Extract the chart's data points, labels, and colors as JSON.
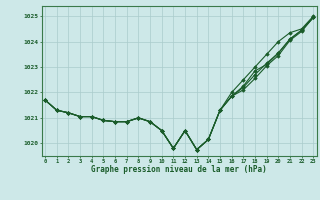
{
  "title": "Graphe pression niveau de la mer (hPa)",
  "bg_color": "#cde8e8",
  "grid_color": "#aacccc",
  "line_color": "#1a5c2a",
  "marker_color": "#1a5c2a",
  "xlim": [
    -0.3,
    23.3
  ],
  "ylim": [
    1019.5,
    1025.4
  ],
  "yticks": [
    1020,
    1021,
    1022,
    1023,
    1024,
    1025
  ],
  "xticks": [
    0,
    1,
    2,
    3,
    4,
    5,
    6,
    7,
    8,
    9,
    10,
    11,
    12,
    13,
    14,
    15,
    16,
    17,
    18,
    19,
    20,
    21,
    22,
    23
  ],
  "series": [
    [
      1021.7,
      1021.3,
      1021.2,
      1021.05,
      1021.05,
      1020.9,
      1020.85,
      1020.85,
      1021.0,
      1020.85,
      1020.5,
      1019.8,
      1020.5,
      1019.75,
      1020.15,
      1021.3,
      1022.0,
      1022.5,
      1023.0,
      1023.5,
      1024.0,
      1024.35,
      1024.5,
      1025.0
    ],
    [
      1021.7,
      1021.3,
      1021.2,
      1021.05,
      1021.05,
      1020.9,
      1020.85,
      1020.85,
      1021.0,
      1020.85,
      1020.5,
      1019.8,
      1020.5,
      1019.75,
      1020.15,
      1021.3,
      1021.85,
      1022.1,
      1022.55,
      1023.05,
      1023.45,
      1024.05,
      1024.4,
      1024.95
    ],
    [
      1021.7,
      1021.3,
      1021.2,
      1021.05,
      1021.05,
      1020.9,
      1020.85,
      1020.85,
      1021.0,
      1020.85,
      1020.5,
      1019.8,
      1020.5,
      1019.75,
      1020.15,
      1021.3,
      1021.85,
      1022.2,
      1022.7,
      1023.15,
      1023.55,
      1024.1,
      1024.45,
      1024.95
    ],
    [
      1021.7,
      1021.3,
      1021.2,
      1021.05,
      1021.05,
      1020.9,
      1020.85,
      1020.85,
      1021.0,
      1020.85,
      1020.5,
      1019.8,
      1020.5,
      1019.75,
      1020.15,
      1021.3,
      1021.85,
      1022.25,
      1022.85,
      1023.1,
      1023.55,
      1024.1,
      1024.45,
      1024.95
    ]
  ]
}
